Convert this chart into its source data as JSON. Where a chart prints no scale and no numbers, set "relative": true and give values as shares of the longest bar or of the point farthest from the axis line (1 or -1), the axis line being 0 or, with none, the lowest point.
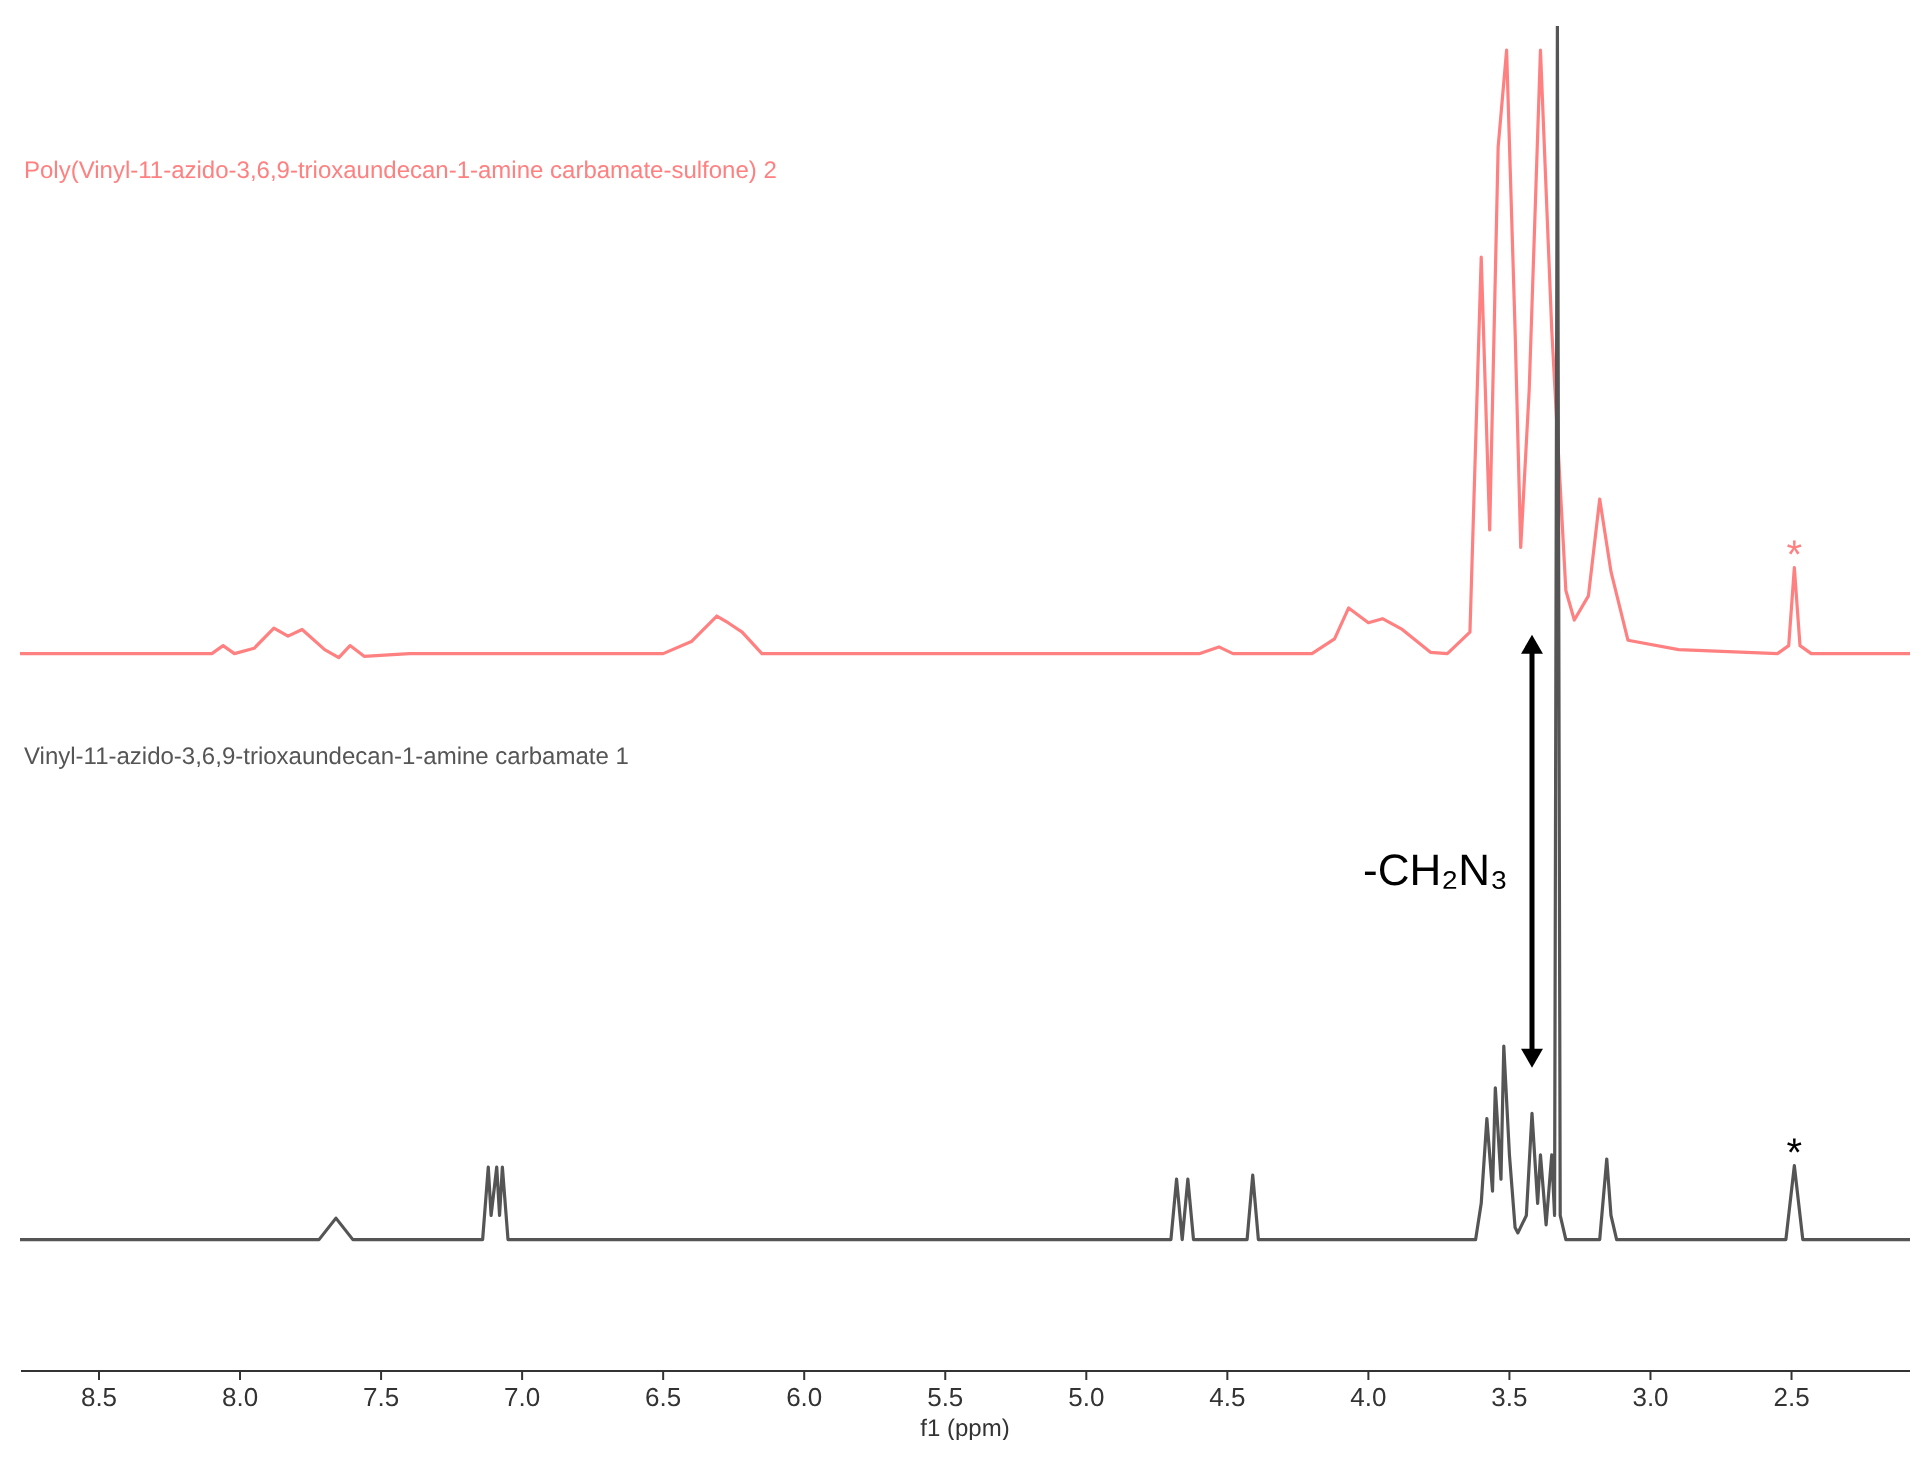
{
  "chart_data": {
    "type": "line",
    "relative": true,
    "xlabel": "f1 (ppm)",
    "xlim": [
      8.78,
      2.08
    ],
    "xticks": [
      8.5,
      {
        "value": 8.0,
        "label": "8.0"
      },
      7.5,
      {
        "value": 7.0,
        "label": "7.0"
      },
      6.5,
      {
        "value": 6.0,
        "label": "6.0"
      },
      5.5,
      {
        "value": 5.0,
        "label": "5.0"
      },
      4.5,
      {
        "value": 4.0,
        "label": "4.0"
      },
      3.5,
      {
        "value": 3.0,
        "label": "3.0"
      },
      2.5
    ],
    "grid": false,
    "line_style": "solid",
    "series": [
      {
        "name": "Poly(Vinyl-11-azido-3,6,9-trioxaundecan-1-amine carbamate-sulfone) 2",
        "color": "#ff8080",
        "x": [
          8.78,
          8.1,
          8.06,
          8.02,
          7.95,
          7.88,
          7.83,
          7.78,
          7.7,
          7.65,
          7.61,
          7.56,
          7.4,
          6.5,
          6.4,
          6.31,
          6.27,
          6.22,
          6.15,
          6.0,
          4.6,
          4.53,
          4.48,
          4.2,
          4.12,
          4.07,
          4.0,
          3.95,
          3.88,
          3.78,
          3.72,
          3.64,
          3.6,
          3.57,
          3.54,
          3.51,
          3.48,
          3.46,
          3.43,
          3.39,
          3.35,
          3.3,
          3.27,
          3.22,
          3.18,
          3.14,
          3.08,
          2.9,
          2.55,
          2.51,
          2.49,
          2.47,
          2.43,
          2.08
        ],
        "values": [
          0.533,
          0.533,
          0.539,
          0.533,
          0.537,
          0.552,
          0.546,
          0.551,
          0.536,
          0.53,
          0.539,
          0.531,
          0.533,
          0.533,
          0.542,
          0.561,
          0.556,
          0.549,
          0.533,
          0.533,
          0.533,
          0.538,
          0.533,
          0.533,
          0.544,
          0.567,
          0.556,
          0.559,
          0.551,
          0.534,
          0.533,
          0.549,
          0.828,
          0.625,
          0.91,
          0.982,
          0.774,
          0.612,
          0.729,
          0.982,
          0.774,
          0.58,
          0.558,
          0.576,
          0.648,
          0.594,
          0.543,
          0.536,
          0.533,
          0.539,
          0.597,
          0.539,
          0.533,
          0.533
        ]
      },
      {
        "name": "Vinyl-11-azido-3,6,9-trioxaundecan-1-amine carbamate 1",
        "color": "#555555",
        "x": [
          8.78,
          7.72,
          7.66,
          7.6,
          7.14,
          7.12,
          7.11,
          7.09,
          7.08,
          7.07,
          7.05,
          4.7,
          4.68,
          4.66,
          4.64,
          4.62,
          4.43,
          4.41,
          4.39,
          3.62,
          3.6,
          3.58,
          3.56,
          3.55,
          3.53,
          3.52,
          3.5,
          3.48,
          3.47,
          3.44,
          3.42,
          3.4,
          3.39,
          3.37,
          3.35,
          3.34,
          3.33,
          3.32,
          3.3,
          3.18,
          3.155,
          3.14,
          3.12,
          2.52,
          2.49,
          2.46,
          2.08
        ],
        "values": [
          0.097,
          0.097,
          0.113,
          0.097,
          0.097,
          0.151,
          0.115,
          0.151,
          0.115,
          0.151,
          0.097,
          0.097,
          0.142,
          0.097,
          0.142,
          0.097,
          0.097,
          0.145,
          0.097,
          0.097,
          0.124,
          0.187,
          0.133,
          0.21,
          0.142,
          0.241,
          0.16,
          0.106,
          0.102,
          0.115,
          0.191,
          0.124,
          0.16,
          0.108,
          0.16,
          0.115,
          1,
          0.115,
          0.097,
          0.097,
          0.157,
          0.115,
          0.097,
          0.097,
          0.152,
          0.097,
          0.097
        ]
      }
    ],
    "annotations": [
      {
        "text": "*",
        "x": 2.49,
        "y": 0.597
      },
      {
        "text": "*",
        "x": 2.49,
        "y": 0.152
      },
      "-CH₂N₃"
    ]
  }
}
